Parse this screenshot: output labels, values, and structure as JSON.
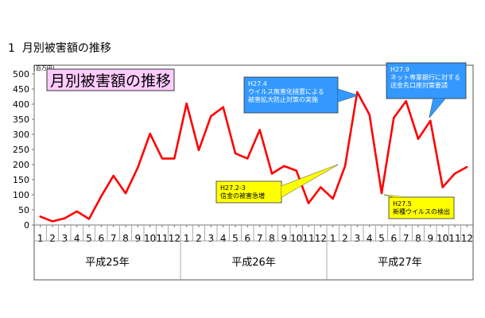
{
  "section": {
    "number": "1",
    "heading": "月別被害額の推移"
  },
  "chart_data": {
    "type": "line",
    "title": "月別被害額の推移",
    "unit_label": "(百万円)",
    "ylim": [
      0,
      500
    ],
    "yticks": [
      0,
      50,
      100,
      150,
      200,
      250,
      300,
      350,
      400,
      450,
      500
    ],
    "grid": false,
    "categories": [
      "1",
      "2",
      "3",
      "4",
      "5",
      "6",
      "7",
      "8",
      "9",
      "10",
      "11",
      "12",
      "1",
      "2",
      "3",
      "4",
      "5",
      "6",
      "7",
      "8",
      "9",
      "10",
      "11",
      "12",
      "1",
      "2",
      "3",
      "4",
      "5",
      "6",
      "7",
      "8",
      "9",
      "10",
      "11",
      "12"
    ],
    "year_groups": [
      {
        "label": "平成25年"
      },
      {
        "label": "平成26年"
      },
      {
        "label": "平成27年"
      }
    ],
    "series": [
      {
        "values": [
          28,
          12,
          22,
          45,
          20,
          95,
          163,
          105,
          190,
          302,
          220,
          220,
          402,
          248,
          360,
          390,
          237,
          220,
          315,
          170,
          195,
          180,
          72,
          125,
          87,
          195,
          440,
          365,
          105,
          355,
          410,
          285,
          345,
          125,
          170,
          192
        ],
        "color": "#ff0000"
      }
    ],
    "annotations": [
      {
        "date": "H27.4",
        "lines": [
          "ウイルス無害化措置による",
          "被害拡大防止対策の実施"
        ],
        "style": "blue"
      },
      {
        "date": "H27.9",
        "lines": [
          "ネット専業銀行に対する",
          "送金先口座対策要請"
        ],
        "style": "blue"
      },
      {
        "date": "H27.2-3",
        "lines": [
          "信金の被害急増"
        ],
        "style": "yellow"
      },
      {
        "date": "H27.5",
        "lines": [
          "新種ウイルスの検出"
        ],
        "style": "yellow"
      }
    ],
    "colors": {
      "line": "#ff0000",
      "title_bg": "#ffccff",
      "blue_box": "#3399ff",
      "yellow_box": "#ffff00"
    }
  }
}
